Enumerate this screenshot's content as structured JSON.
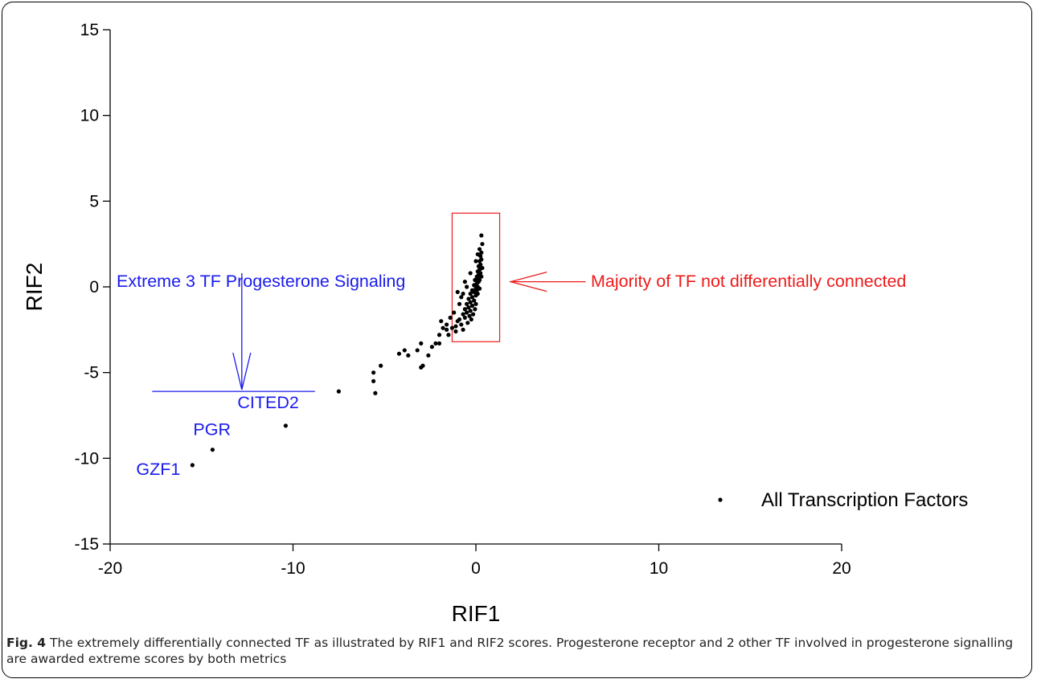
{
  "chart_data": {
    "type": "scatter",
    "xlabel": "RIF1",
    "ylabel": "RIF2",
    "xlim": [
      -20,
      20
    ],
    "ylim": [
      -15,
      15
    ],
    "xticks": [
      -20,
      -10,
      0,
      10,
      20
    ],
    "yticks": [
      -15,
      -10,
      -5,
      0,
      5,
      10,
      15
    ],
    "grid": false,
    "legend_position": "bottom-right",
    "series": [
      {
        "name": "All Transcription Factors",
        "color": "#000000",
        "points": [
          [
            -15.5,
            -10.4
          ],
          [
            -14.4,
            -9.5
          ],
          [
            -10.4,
            -8.1
          ],
          [
            -7.5,
            -6.1
          ],
          [
            -5.6,
            -5.0
          ],
          [
            -5.6,
            -5.5
          ],
          [
            -5.5,
            -6.2
          ],
          [
            -5.2,
            -4.6
          ],
          [
            -4.2,
            -3.9
          ],
          [
            -3.9,
            -3.7
          ],
          [
            -3.7,
            -4.0
          ],
          [
            -3.2,
            -3.7
          ],
          [
            -3.0,
            -3.3
          ],
          [
            -3.0,
            -4.7
          ],
          [
            -2.9,
            -4.6
          ],
          [
            -2.6,
            -4.0
          ],
          [
            -2.4,
            -3.5
          ],
          [
            -2.2,
            -3.3
          ],
          [
            -2.0,
            -3.3
          ],
          [
            -2.0,
            -2.8
          ],
          [
            -1.8,
            -2.4
          ],
          [
            -1.9,
            -2.0
          ],
          [
            -1.6,
            -2.2
          ],
          [
            -1.5,
            -2.8
          ],
          [
            -1.3,
            -2.4
          ],
          [
            -1.1,
            -2.6
          ],
          [
            -1.0,
            -2.0
          ],
          [
            -0.9,
            -1.9
          ],
          [
            -0.8,
            -2.2
          ],
          [
            -0.7,
            -1.6
          ],
          [
            -0.7,
            -2.5
          ],
          [
            -0.6,
            -1.3
          ],
          [
            -0.6,
            -1.8
          ],
          [
            -0.5,
            -1.0
          ],
          [
            -0.5,
            -1.5
          ],
          [
            -0.45,
            -2.1
          ],
          [
            -0.4,
            -0.7
          ],
          [
            -0.4,
            -1.2
          ],
          [
            -0.35,
            -1.7
          ],
          [
            -0.3,
            -0.4
          ],
          [
            -0.3,
            -0.9
          ],
          [
            -0.3,
            -1.4
          ],
          [
            -0.25,
            -1.9
          ],
          [
            -0.2,
            -0.2
          ],
          [
            -0.2,
            -0.6
          ],
          [
            -0.2,
            -1.1
          ],
          [
            -0.15,
            -1.6
          ],
          [
            -0.1,
            0.1
          ],
          [
            -0.1,
            -0.3
          ],
          [
            -0.1,
            -0.8
          ],
          [
            -0.05,
            -1.3
          ],
          [
            -0.05,
            0.4
          ],
          [
            0.0,
            -0.1
          ],
          [
            0.0,
            -0.5
          ],
          [
            0.0,
            -1.0
          ],
          [
            0.05,
            0.6
          ],
          [
            0.05,
            0.2
          ],
          [
            0.05,
            -0.2
          ],
          [
            0.1,
            0.9
          ],
          [
            0.1,
            0.5
          ],
          [
            0.1,
            0.0
          ],
          [
            0.1,
            -0.4
          ],
          [
            0.15,
            1.2
          ],
          [
            0.15,
            0.7
          ],
          [
            0.15,
            0.3
          ],
          [
            0.2,
            1.5
          ],
          [
            0.2,
            1.0
          ],
          [
            0.2,
            0.4
          ],
          [
            0.25,
            1.8
          ],
          [
            0.25,
            1.3
          ],
          [
            0.25,
            0.8
          ],
          [
            0.3,
            2.0
          ],
          [
            0.3,
            1.6
          ],
          [
            0.3,
            0.6
          ],
          [
            0.35,
            2.5
          ],
          [
            0.35,
            1.1
          ],
          [
            0.2,
            2.2
          ],
          [
            0.3,
            3.0
          ],
          [
            -1.0,
            -0.3
          ],
          [
            -0.8,
            -0.6
          ],
          [
            -0.6,
            0.3
          ],
          [
            -0.3,
            0.8
          ],
          [
            0.0,
            1.5
          ],
          [
            0.1,
            1.9
          ],
          [
            -1.2,
            -1.5
          ],
          [
            -1.4,
            -1.8
          ],
          [
            -0.9,
            -1.0
          ],
          [
            -0.7,
            -0.4
          ],
          [
            -1.6,
            -2.5
          ],
          [
            -1.1,
            -2.3
          ],
          [
            -0.5,
            0.0
          ],
          [
            0.2,
            -0.1
          ]
        ]
      }
    ],
    "point_labels": [
      {
        "text": "GZF1",
        "x": -15.5,
        "y": -10.4,
        "color": "#1a1aee"
      },
      {
        "text": "PGR",
        "x": -14.4,
        "y": -9.5,
        "color": "#1a1aee"
      },
      {
        "text": "CITED2",
        "x": -10.4,
        "y": -8.1,
        "color": "#1a1aee"
      }
    ],
    "annotations": [
      {
        "text": "Extreme 3 TF Progesterone Signaling",
        "color": "#1a1aee"
      },
      {
        "text": "Majority of TF not differentially connected",
        "color": "#ee1a1a"
      }
    ],
    "highlight_box": {
      "x0": -1.3,
      "x1": 1.3,
      "y0": -3.2,
      "y1": 4.3,
      "color": "#ee1a1a"
    },
    "bracket_line": {
      "x0": -17.7,
      "x1": -8.8,
      "y": -6.1
    },
    "arrow_down": {
      "x": -12.8,
      "y_from": 0.8,
      "y_to": -6.0
    },
    "arrow_left": {
      "x_from": 6.0,
      "x_to": 1.9,
      "y": 0.3
    }
  },
  "caption": {
    "label": "Fig. 4",
    "text": " The extremely differentially connected TF as illustrated by RIF1 and RIF2 scores. Progesterone receptor and 2 other TF involved in progesterone signalling are awarded extreme scores by both metrics"
  }
}
